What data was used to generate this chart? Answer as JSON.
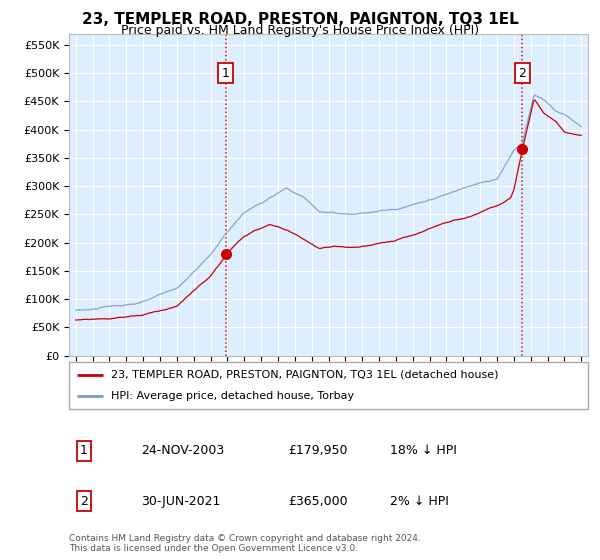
{
  "title": "23, TEMPLER ROAD, PRESTON, PAIGNTON, TQ3 1EL",
  "subtitle": "Price paid vs. HM Land Registry's House Price Index (HPI)",
  "legend_label_red": "23, TEMPLER ROAD, PRESTON, PAIGNTON, TQ3 1EL (detached house)",
  "legend_label_blue": "HPI: Average price, detached house, Torbay",
  "annotation1_label": "1",
  "annotation1_date": "24-NOV-2003",
  "annotation1_price": "£179,950",
  "annotation1_hpi": "18% ↓ HPI",
  "annotation1_year": 2003.9,
  "annotation1_value": 179950,
  "annotation2_label": "2",
  "annotation2_date": "30-JUN-2021",
  "annotation2_price": "£365,000",
  "annotation2_hpi": "2% ↓ HPI",
  "annotation2_year": 2021.5,
  "annotation2_value": 365000,
  "footer": "Contains HM Land Registry data © Crown copyright and database right 2024.\nThis data is licensed under the Open Government Licence v3.0.",
  "ylim": [
    0,
    570000
  ],
  "yticks": [
    0,
    50000,
    100000,
    150000,
    200000,
    250000,
    300000,
    350000,
    400000,
    450000,
    500000,
    550000
  ],
  "ytick_labels": [
    "£0",
    "£50K",
    "£100K",
    "£150K",
    "£200K",
    "£250K",
    "£300K",
    "£350K",
    "£400K",
    "£450K",
    "£500K",
    "£550K"
  ],
  "background_color": "#ddeeff",
  "grid_color": "#ffffff",
  "red_color": "#cc0000",
  "blue_color": "#7799cc",
  "title_fontsize": 11,
  "subtitle_fontsize": 9
}
